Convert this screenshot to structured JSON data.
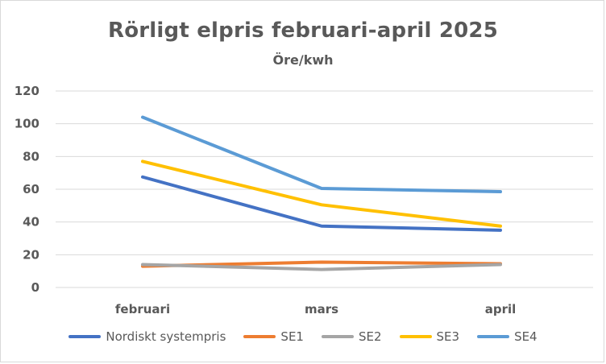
{
  "chart_data": {
    "type": "line",
    "title": "Rörligt elpris februari-april 2025",
    "subtitle": "Öre/kwh",
    "xlabel": "",
    "ylabel": "",
    "categories": [
      "februari",
      "mars",
      "april"
    ],
    "ylim": [
      0,
      120
    ],
    "yticks": [
      0,
      20,
      40,
      60,
      80,
      100,
      120
    ],
    "grid": true,
    "legend_position": "bottom",
    "series": [
      {
        "name": "Nordiskt systempris",
        "color": "#4472C4",
        "values": [
          67.5,
          37.5,
          35.0
        ]
      },
      {
        "name": "SE1",
        "color": "#ED7D31",
        "values": [
          13.0,
          15.5,
          14.5
        ]
      },
      {
        "name": "SE2",
        "color": "#A5A5A5",
        "values": [
          14.0,
          11.0,
          14.0
        ]
      },
      {
        "name": "SE3",
        "color": "#FFC000",
        "values": [
          77.0,
          50.5,
          37.5
        ]
      },
      {
        "name": "SE4",
        "color": "#5B9BD5",
        "values": [
          104.0,
          60.5,
          58.5
        ]
      }
    ]
  }
}
